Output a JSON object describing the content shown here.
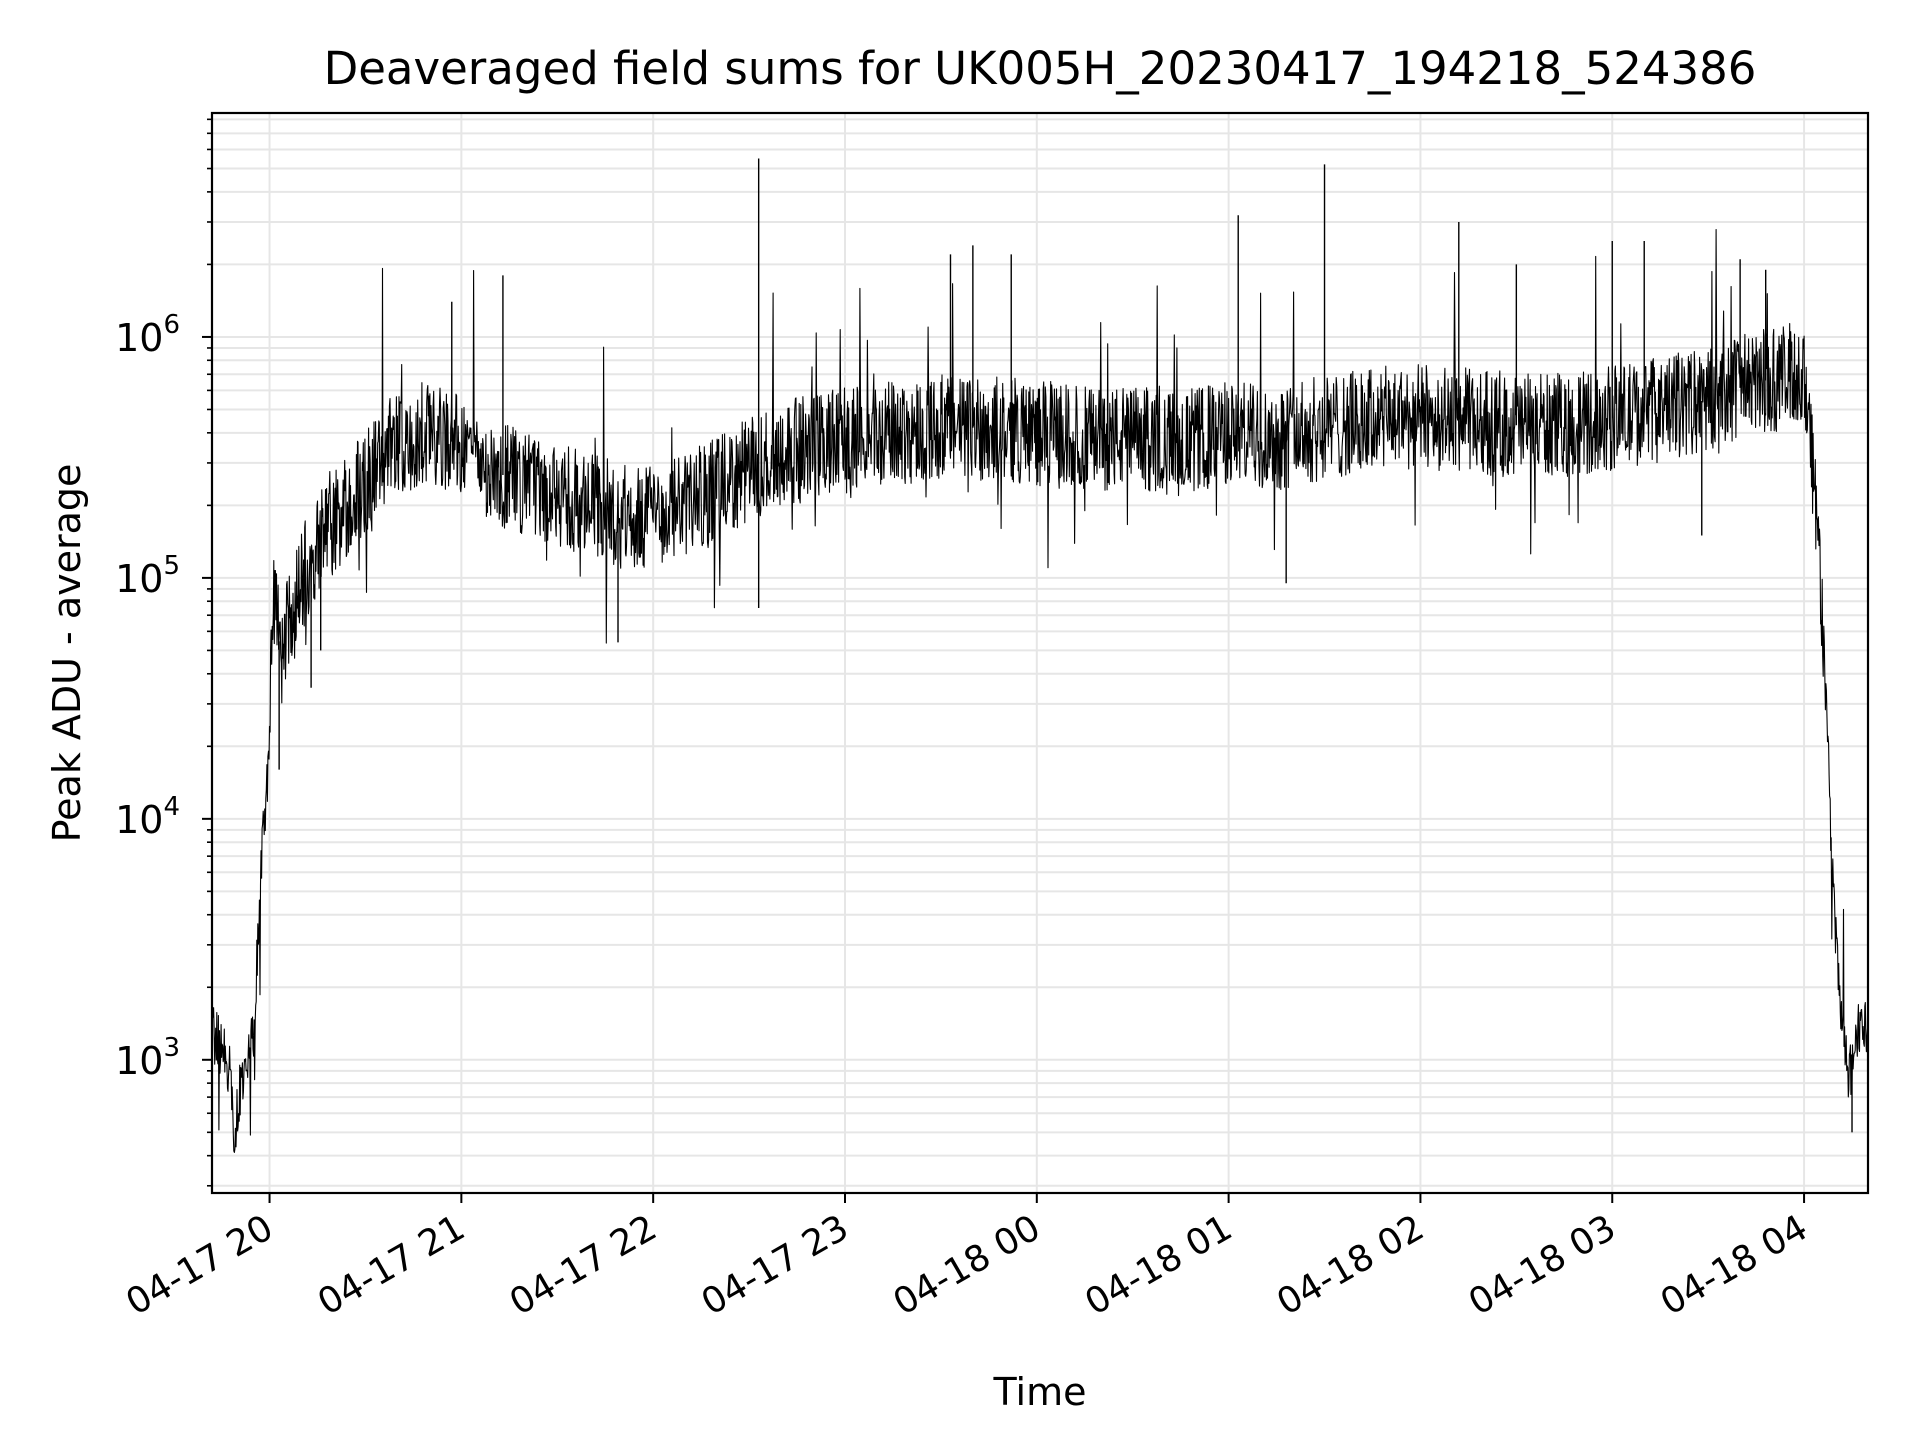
{
  "chart_data": {
    "type": "line",
    "title": "Deaveraged field sums for UK005H_20230417_194218_524386",
    "xlabel": "Time",
    "ylabel": "Peak ADU - average",
    "x_axis": {
      "kind": "datetime",
      "range": [
        "2023-04-17 19:42",
        "2023-04-18 04:20"
      ],
      "tick_labels": [
        "04-17 20",
        "04-17 21",
        "04-17 22",
        "04-17 23",
        "04-18 00",
        "04-18 01",
        "04-18 02",
        "04-18 03",
        "04-18 04"
      ],
      "tick_times": [
        "2023-04-17 20:00",
        "2023-04-17 21:00",
        "2023-04-17 22:00",
        "2023-04-17 23:00",
        "2023-04-18 00:00",
        "2023-04-18 01:00",
        "2023-04-18 02:00",
        "2023-04-18 03:00",
        "2023-04-18 04:00"
      ]
    },
    "y_axis": {
      "scale": "log",
      "range": [
        280,
        8500000
      ],
      "major_ticks": [
        1000,
        10000,
        100000,
        1000000
      ],
      "tick_labels": [
        {
          "base": "10",
          "exp": "3"
        },
        {
          "base": "10",
          "exp": "4"
        },
        {
          "base": "10",
          "exp": "5"
        },
        {
          "base": "10",
          "exp": "6"
        }
      ]
    },
    "grid": true,
    "legend": "none",
    "series": [
      {
        "color": "#000000",
        "points": [
          [
            "2023-04-17 19:42",
            1300
          ],
          [
            "2023-04-17 19:45",
            1100
          ],
          [
            "2023-04-17 19:48",
            900
          ],
          [
            "2023-04-17 19:49",
            450
          ],
          [
            "2023-04-17 19:51",
            800
          ],
          [
            "2023-04-17 19:53",
            1000
          ],
          [
            "2023-04-17 19:55",
            1300
          ],
          [
            "2023-04-17 19:56",
            2400
          ],
          [
            "2023-04-17 19:57",
            4500
          ],
          [
            "2023-04-17 19:58",
            9000
          ],
          [
            "2023-04-17 20:00",
            20000
          ],
          [
            "2023-04-17 20:01",
            80000
          ],
          [
            "2023-04-17 20:04",
            45000
          ],
          [
            "2023-04-17 20:08",
            90000
          ],
          [
            "2023-04-17 20:12",
            110000
          ],
          [
            "2023-04-17 20:16",
            140000
          ],
          [
            "2023-04-17 20:20",
            170000
          ],
          [
            "2023-04-17 20:25",
            200000
          ],
          [
            "2023-04-17 20:30",
            250000
          ],
          [
            "2023-04-17 20:35",
            320000
          ],
          [
            "2023-04-17 20:40",
            350000
          ],
          [
            "2023-04-17 20:45",
            380000
          ],
          [
            "2023-04-17 20:50",
            400000
          ],
          [
            "2023-04-17 20:55",
            380000
          ],
          [
            "2023-04-17 21:00",
            350000
          ],
          [
            "2023-04-17 21:10",
            280000
          ],
          [
            "2023-04-17 21:20",
            240000
          ],
          [
            "2023-04-17 21:30",
            220000
          ],
          [
            "2023-04-17 21:40",
            200000
          ],
          [
            "2023-04-17 21:50",
            180000
          ],
          [
            "2023-04-17 22:00",
            180000
          ],
          [
            "2023-04-17 22:10",
            200000
          ],
          [
            "2023-04-17 22:20",
            230000
          ],
          [
            "2023-04-17 22:30",
            280000
          ],
          [
            "2023-04-17 22:40",
            330000
          ],
          [
            "2023-04-17 22:50",
            350000
          ],
          [
            "2023-04-17 23:00",
            370000
          ],
          [
            "2023-04-17 23:15",
            400000
          ],
          [
            "2023-04-17 23:30",
            420000
          ],
          [
            "2023-04-17 23:45",
            420000
          ],
          [
            "2023-04-18 00:00",
            400000
          ],
          [
            "2023-04-18 00:15",
            380000
          ],
          [
            "2023-04-18 00:30",
            380000
          ],
          [
            "2023-04-18 00:45",
            360000
          ],
          [
            "2023-04-18 01:00",
            400000
          ],
          [
            "2023-04-18 01:15",
            380000
          ],
          [
            "2023-04-18 01:30",
            420000
          ],
          [
            "2023-04-18 01:45",
            450000
          ],
          [
            "2023-04-18 02:00",
            470000
          ],
          [
            "2023-04-18 02:15",
            450000
          ],
          [
            "2023-04-18 02:30",
            430000
          ],
          [
            "2023-04-18 02:45",
            430000
          ],
          [
            "2023-04-18 03:00",
            460000
          ],
          [
            "2023-04-18 03:15",
            500000
          ],
          [
            "2023-04-18 03:30",
            550000
          ],
          [
            "2023-04-18 03:45",
            650000
          ],
          [
            "2023-04-18 04:00",
            700000
          ],
          [
            "2023-04-18 04:02",
            400000
          ],
          [
            "2023-04-18 04:04",
            180000
          ],
          [
            "2023-04-18 04:06",
            60000
          ],
          [
            "2023-04-18 04:08",
            12000
          ],
          [
            "2023-04-18 04:10",
            3000
          ],
          [
            "2023-04-18 04:12",
            1300
          ],
          [
            "2023-04-18 04:14",
            800
          ],
          [
            "2023-04-18 04:16",
            1200
          ],
          [
            "2023-04-18 04:18",
            1500
          ],
          [
            "2023-04-18 04:20",
            1200
          ]
        ],
        "spikes": [
          [
            "2023-04-17 20:03",
            16000
          ],
          [
            "2023-04-17 20:13",
            35000
          ],
          [
            "2023-04-17 20:16",
            50000
          ],
          [
            "2023-04-17 21:13",
            1800000
          ],
          [
            "2023-04-17 20:57",
            1400000
          ],
          [
            "2023-04-17 21:49",
            54000
          ],
          [
            "2023-04-17 22:33",
            5500000
          ],
          [
            "2023-04-17 22:33",
            75000
          ],
          [
            "2023-04-17 23:33",
            2200000
          ],
          [
            "2023-04-17 23:40",
            2400000
          ],
          [
            "2023-04-17 23:52",
            2200000
          ],
          [
            "2023-04-18 01:03",
            3200000
          ],
          [
            "2023-04-18 01:30",
            5200000
          ],
          [
            "2023-04-18 01:18",
            95000
          ],
          [
            "2023-04-18 02:12",
            3000000
          ],
          [
            "2023-04-18 02:30",
            2000000
          ],
          [
            "2023-04-18 03:00",
            2500000
          ],
          [
            "2023-04-18 03:10",
            2500000
          ],
          [
            "2023-04-18 03:28",
            150000
          ],
          [
            "2023-04-18 03:40",
            2100000
          ],
          [
            "2023-04-18 03:48",
            1900000
          ],
          [
            "2023-04-18 04:15",
            500
          ]
        ]
      }
    ]
  }
}
